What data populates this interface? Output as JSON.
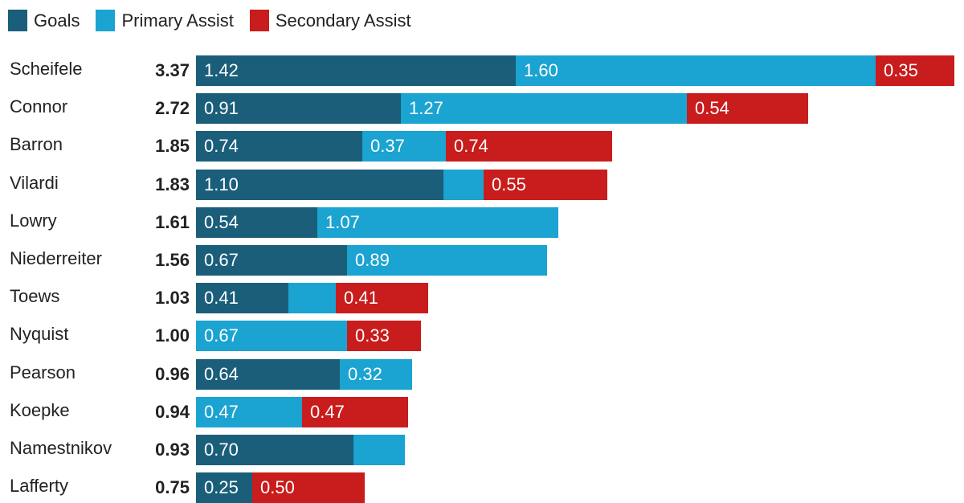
{
  "chart_data": {
    "type": "bar",
    "orientation": "horizontal",
    "stacked": true,
    "legend_position": "top-left",
    "grid": false,
    "series": [
      {
        "name": "Goals",
        "color": "#1a5e7a",
        "values": [
          1.42,
          0.91,
          0.74,
          1.1,
          0.54,
          0.67,
          0.41,
          0,
          0.64,
          0,
          0.7,
          0.25
        ]
      },
      {
        "name": "Primary Assist",
        "color": "#1ba3d1",
        "values": [
          1.6,
          1.27,
          0.37,
          0.18,
          1.07,
          0.89,
          0.21,
          0.67,
          0.32,
          0.47,
          0.23,
          0
        ]
      },
      {
        "name": "Secondary Assist",
        "color": "#c91c1c",
        "values": [
          0.35,
          0.54,
          0.74,
          0.55,
          0,
          0,
          0.41,
          0.33,
          0,
          0.47,
          0,
          0.5
        ]
      }
    ],
    "categories": [
      "Scheifele",
      "Connor",
      "Barron",
      "Vilardi",
      "Lowry",
      "Niederreiter",
      "Toews",
      "Nyquist",
      "Pearson",
      "Koepke",
      "Namestnikov",
      "Lafferty"
    ],
    "totals": [
      "3.37",
      "2.72",
      "1.85",
      "1.83",
      "1.61",
      "1.56",
      "1.03",
      "1.00",
      "0.96",
      "0.94",
      "0.93",
      "0.75"
    ],
    "labeled": [
      [
        true,
        true,
        true
      ],
      [
        true,
        true,
        true
      ],
      [
        true,
        true,
        true
      ],
      [
        true,
        false,
        true
      ],
      [
        true,
        true,
        false
      ],
      [
        true,
        true,
        false
      ],
      [
        true,
        false,
        true
      ],
      [
        false,
        true,
        true
      ],
      [
        true,
        true,
        false
      ],
      [
        false,
        true,
        true
      ],
      [
        true,
        false,
        false
      ],
      [
        true,
        true,
        true
      ]
    ]
  }
}
